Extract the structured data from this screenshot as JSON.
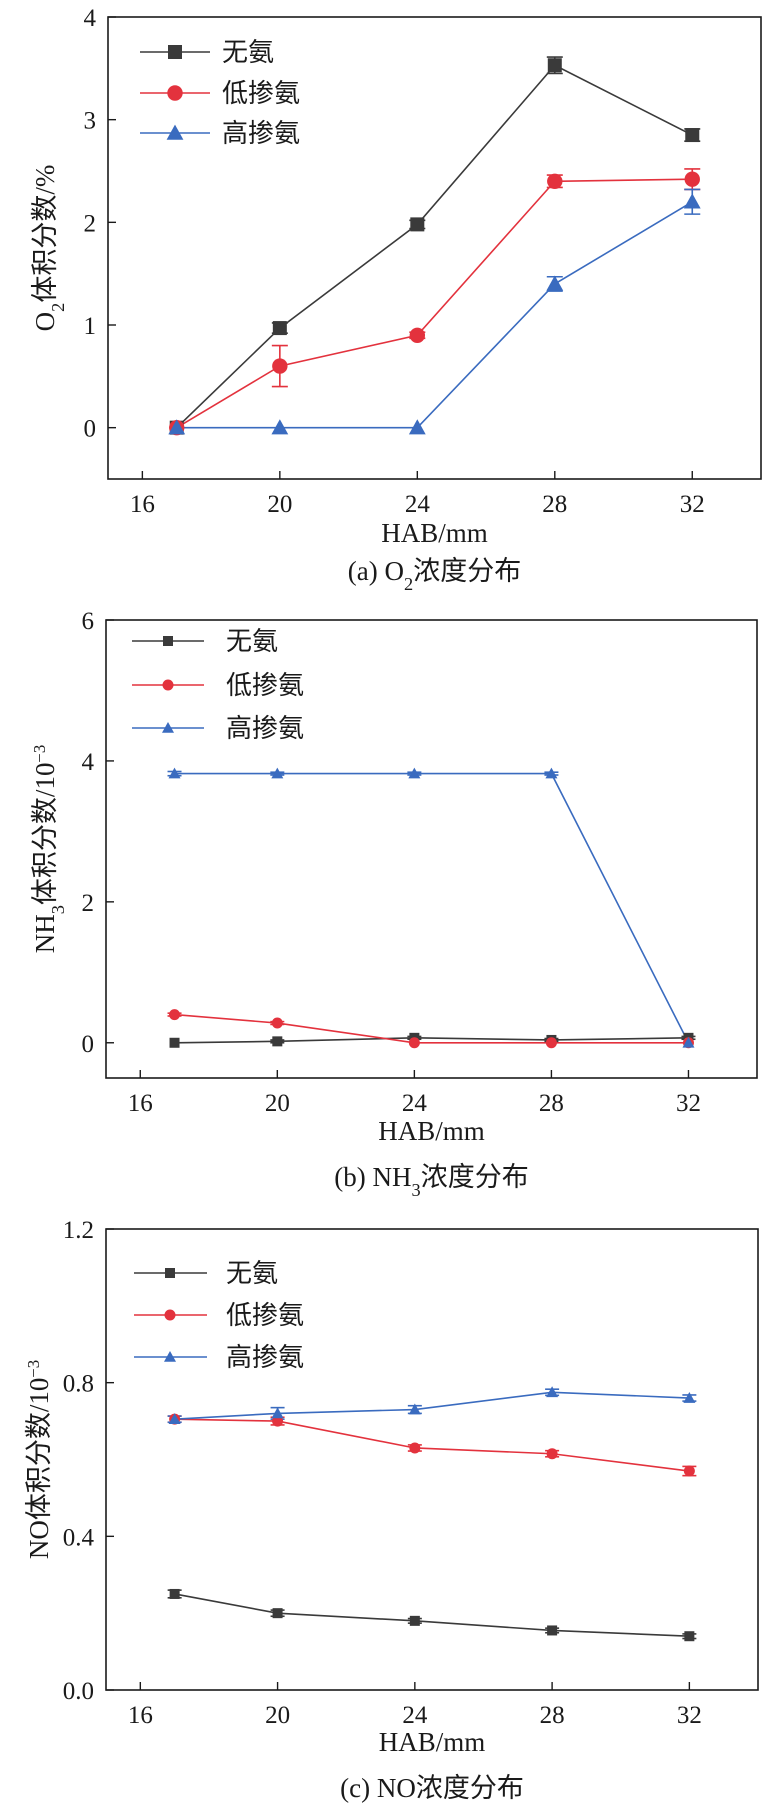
{
  "chart_data": [
    {
      "type": "line",
      "caption": [
        {
          "text": "(a) O"
        },
        {
          "text": "2",
          "style": "sub"
        },
        {
          "text": "浓度分布"
        }
      ],
      "xlabel": "HAB/mm",
      "ylabel": [
        {
          "text": "O"
        },
        {
          "text": "2",
          "style": "sub"
        },
        {
          "text": "体积分数/%"
        }
      ],
      "xlim": [
        15,
        34
      ],
      "ylim": [
        -0.5,
        4
      ],
      "xticks": [
        16,
        20,
        24,
        28,
        32
      ],
      "xtick_labels": [
        "16",
        "20",
        "24",
        "28",
        "32"
      ],
      "yticks": [
        0,
        1,
        2,
        3,
        4
      ],
      "ytick_labels": [
        "0",
        "1",
        "2",
        "3",
        "4"
      ],
      "legend": "top-left",
      "x": [
        17,
        20,
        24,
        28,
        32
      ],
      "series": [
        {
          "name": "无氨",
          "color": "#3a3a3a",
          "marker": "square",
          "values": [
            0,
            0.97,
            1.98,
            3.53,
            2.85
          ],
          "errors": [
            0,
            0.05,
            0.04,
            0.08,
            0.06
          ]
        },
        {
          "name": "低掺氨",
          "color": "#e3323d",
          "marker": "circle",
          "values": [
            0,
            0.6,
            0.9,
            2.4,
            2.42
          ],
          "errors": [
            0,
            0.2,
            0.03,
            0.06,
            0.1
          ]
        },
        {
          "name": "高掺氨",
          "color": "#3a6bbf",
          "marker": "triangle",
          "values": [
            0,
            0,
            0,
            1.4,
            2.2
          ],
          "errors": [
            0,
            0,
            0,
            0.07,
            0.12
          ]
        }
      ]
    },
    {
      "type": "line",
      "caption": [
        {
          "text": "(b) NH"
        },
        {
          "text": "3",
          "style": "sub"
        },
        {
          "text": "浓度分布"
        }
      ],
      "xlabel": "HAB/mm",
      "ylabel": [
        {
          "text": "NH"
        },
        {
          "text": "3",
          "style": "sub"
        },
        {
          "text": "体积分数/10"
        },
        {
          "text": "−3",
          "style": "sup"
        }
      ],
      "xlim": [
        15,
        34
      ],
      "ylim": [
        -0.5,
        6
      ],
      "xticks": [
        16,
        20,
        24,
        28,
        32
      ],
      "xtick_labels": [
        "16",
        "20",
        "24",
        "28",
        "32"
      ],
      "yticks": [
        0,
        2,
        4,
        6
      ],
      "ytick_labels": [
        "0",
        "2",
        "4",
        "6"
      ],
      "legend": "top-left",
      "x": [
        17,
        20,
        24,
        28,
        32
      ],
      "series": [
        {
          "name": "无氨",
          "color": "#3a3a3a",
          "marker": "square",
          "values": [
            0,
            0.02,
            0.07,
            0.04,
            0.07
          ],
          "errors": [
            0,
            0.02,
            0.02,
            0.02,
            0.02
          ]
        },
        {
          "name": "低掺氨",
          "color": "#e3323d",
          "marker": "circle",
          "values": [
            0.4,
            0.28,
            0,
            0,
            0
          ],
          "errors": [
            0.02,
            0.02,
            0,
            0,
            0
          ]
        },
        {
          "name": "高掺氨",
          "color": "#3a6bbf",
          "marker": "triangle",
          "values": [
            3.82,
            3.82,
            3.82,
            3.82,
            0
          ],
          "errors": [
            0.03,
            0.02,
            0.02,
            0.02,
            0
          ]
        }
      ]
    },
    {
      "type": "line",
      "caption": [
        {
          "text": "(c) NO浓度分布"
        }
      ],
      "xlabel": "HAB/mm",
      "ylabel": [
        {
          "text": "NO体积分数/10"
        },
        {
          "text": "−3",
          "style": "sup"
        }
      ],
      "xlim": [
        15,
        34
      ],
      "ylim": [
        0,
        1.2
      ],
      "xticks": [
        16,
        20,
        24,
        28,
        32
      ],
      "xtick_labels": [
        "16",
        "20",
        "24",
        "28",
        "32"
      ],
      "yticks": [
        0,
        0.4,
        0.8,
        1.2
      ],
      "ytick_labels": [
        "0.0",
        "0.4",
        "0.8",
        "1.2"
      ],
      "legend": "top-left",
      "x": [
        17,
        20,
        24,
        28,
        32
      ],
      "series": [
        {
          "name": "无氨",
          "color": "#3a3a3a",
          "marker": "square",
          "values": [
            0.25,
            0.2,
            0.18,
            0.155,
            0.14
          ],
          "errors": [
            0.01,
            0.008,
            0.006,
            0.006,
            0.006
          ]
        },
        {
          "name": "低掺氨",
          "color": "#e3323d",
          "marker": "circle",
          "values": [
            0.705,
            0.7,
            0.63,
            0.615,
            0.57
          ],
          "errors": [
            0.008,
            0.01,
            0.008,
            0.008,
            0.012
          ]
        },
        {
          "name": "高掺氨",
          "color": "#3a6bbf",
          "marker": "triangle",
          "values": [
            0.705,
            0.72,
            0.73,
            0.775,
            0.76
          ],
          "errors": [
            0.008,
            0.015,
            0.01,
            0.008,
            0.008
          ]
        }
      ]
    }
  ]
}
